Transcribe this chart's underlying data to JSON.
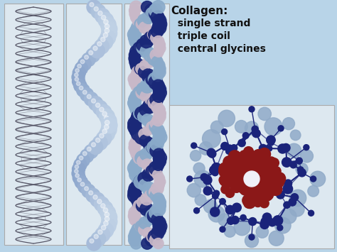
{
  "background_color": "#b8d4e8",
  "panel_bg": "#dde8f0",
  "panel_border": "#aaaaaa",
  "title_text": "Collagen:",
  "labels": [
    "  single strand",
    "  triple coil",
    "  central glycines"
  ],
  "title_fontsize": 11,
  "label_fontsize": 10,
  "title_color": "#111111",
  "label_color": "#111111",
  "strand_light_blue": "#8aaaca",
  "strand_mid_blue": "#5a7aaa",
  "strand_dark_blue": "#1a2878",
  "strand_pinkish": "#c8b8c8",
  "strand_white": "#e8e8f0",
  "cross_red": "#8b1818",
  "cross_dark_blue": "#1a237a",
  "cross_light_blue": "#90aac8",
  "cross_white": "#f0f0f8",
  "cross_bg": "#dde8f0",
  "helix_wire_color": "#555566"
}
